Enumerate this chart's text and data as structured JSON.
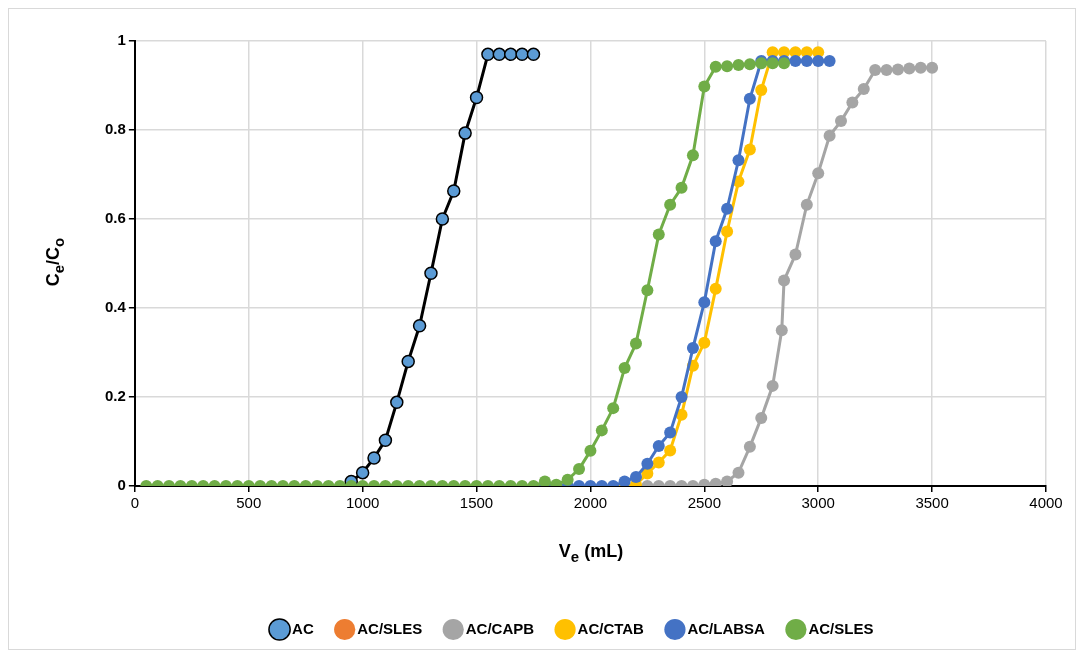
{
  "chart_data": {
    "type": "line",
    "xlabel": "V$_{e}$ (mL)",
    "ylabel": "C$_{e}$/C$_{o}$",
    "xlim": [
      0,
      4000
    ],
    "xticks": [
      0,
      500,
      1000,
      1500,
      2000,
      2500,
      3000,
      3500,
      4000
    ],
    "ylim": [
      0,
      1
    ],
    "yticks": [
      0,
      0.2,
      0.4,
      0.6,
      0.8,
      1
    ],
    "grid": true,
    "legend": "bottom",
    "marker": "circle",
    "line_style": "solid",
    "series": [
      {
        "name": "AC",
        "color": "#000000",
        "colors": [
          "#5b9bd5",
          "#5b9bd5",
          "#5b9bd5",
          "#5b9bd5",
          "#5b9bd5",
          "#5b9bd5",
          "#5b9bd5",
          "#5b9bd5",
          "#5b9bd5",
          "#5b9bd5",
          "#5b9bd5",
          "#5b9bd5",
          "#5b9bd5",
          "#5b9bd5",
          "#5b9bd5",
          "#5b9bd5",
          "#5b9bd5"
        ],
        "x": [
          950,
          1000,
          1050,
          1100,
          1150,
          1200,
          1250,
          1300,
          1350,
          1400,
          1450,
          1500,
          1550,
          1600,
          1650,
          1700,
          1750
        ],
        "values": [
          0.01,
          0.03,
          0.063,
          0.103,
          0.188,
          0.28,
          0.36,
          0.478,
          0.6,
          0.663,
          0.793,
          0.873,
          0.97,
          0.97,
          0.97,
          0.97,
          0.97
        ]
      },
      {
        "name": "AC/SLES",
        "color": "#ed7d31"
      },
      {
        "name": "AC/CAPB",
        "color": "#a5a5a5",
        "x": [
          2250,
          2300,
          2350,
          2400,
          2450,
          2500,
          2550,
          2600,
          2650,
          2700,
          2750,
          2800,
          2840,
          2850,
          2900,
          2950,
          3000,
          3050,
          3100,
          3150,
          3200,
          3250,
          3300,
          3350,
          3400,
          3450,
          3500
        ],
        "values": [
          0,
          0,
          0,
          0,
          0,
          0.003,
          0.005,
          0.01,
          0.03,
          0.088,
          0.153,
          0.225,
          0.35,
          0.462,
          0.52,
          0.632,
          0.703,
          0.787,
          0.82,
          0.862,
          0.892,
          0.935,
          0.935,
          0.936,
          0.938,
          0.94,
          0.94
        ]
      },
      {
        "name": "AC/CTAB",
        "color": "#ffc000",
        "x": [
          2150,
          2200,
          2250,
          2300,
          2350,
          2400,
          2450,
          2500,
          2550,
          2600,
          2650,
          2700,
          2750,
          2800,
          2850,
          2900,
          2950,
          3000
        ],
        "values": [
          0,
          0.003,
          0.028,
          0.053,
          0.08,
          0.16,
          0.27,
          0.322,
          0.443,
          0.572,
          0.684,
          0.756,
          0.89,
          0.975,
          0.975,
          0.975,
          0.975,
          0.975
        ]
      },
      {
        "name": "AC/LABSA",
        "color": "#4472c4",
        "x": [
          1800,
          1850,
          1900,
          1950,
          2000,
          2050,
          2100,
          2150,
          2200,
          2250,
          2300,
          2350,
          2400,
          2450,
          2500,
          2550,
          2600,
          2650,
          2700,
          2750,
          2800,
          2850,
          2900,
          2950,
          3000,
          3050
        ],
        "values": [
          0,
          0,
          0,
          0,
          0,
          0,
          0,
          0.01,
          0.02,
          0.05,
          0.09,
          0.12,
          0.2,
          0.31,
          0.413,
          0.55,
          0.623,
          0.732,
          0.87,
          0.955,
          0.955,
          0.955,
          0.955,
          0.955,
          0.955,
          0.955
        ]
      },
      {
        "name": "AC/SLES",
        "color": "#70ad47",
        "x": [
          50,
          100,
          150,
          200,
          250,
          300,
          350,
          400,
          450,
          500,
          550,
          600,
          650,
          700,
          750,
          800,
          850,
          900,
          950,
          1000,
          1050,
          1100,
          1150,
          1200,
          1250,
          1300,
          1350,
          1400,
          1450,
          1500,
          1550,
          1600,
          1650,
          1700,
          1750,
          1800,
          1850,
          1900,
          1950,
          2000,
          2050,
          2100,
          2150,
          2200,
          2250,
          2300,
          2350,
          2400,
          2450,
          2500,
          2550,
          2600,
          2650,
          2700,
          2750,
          2800,
          2850
        ],
        "values": [
          0,
          0,
          0,
          0,
          0,
          0,
          0,
          0,
          0,
          0,
          0,
          0,
          0,
          0,
          0,
          0,
          0,
          0,
          0,
          0,
          0,
          0,
          0,
          0,
          0,
          0,
          0,
          0,
          0,
          0,
          0,
          0,
          0,
          0,
          0,
          0.01,
          0.003,
          0.014,
          0.038,
          0.079,
          0.125,
          0.175,
          0.265,
          0.32,
          0.44,
          0.565,
          0.632,
          0.67,
          0.743,
          0.898,
          0.942,
          0.943,
          0.946,
          0.948,
          0.95,
          0.95,
          0.95
        ]
      }
    ]
  }
}
